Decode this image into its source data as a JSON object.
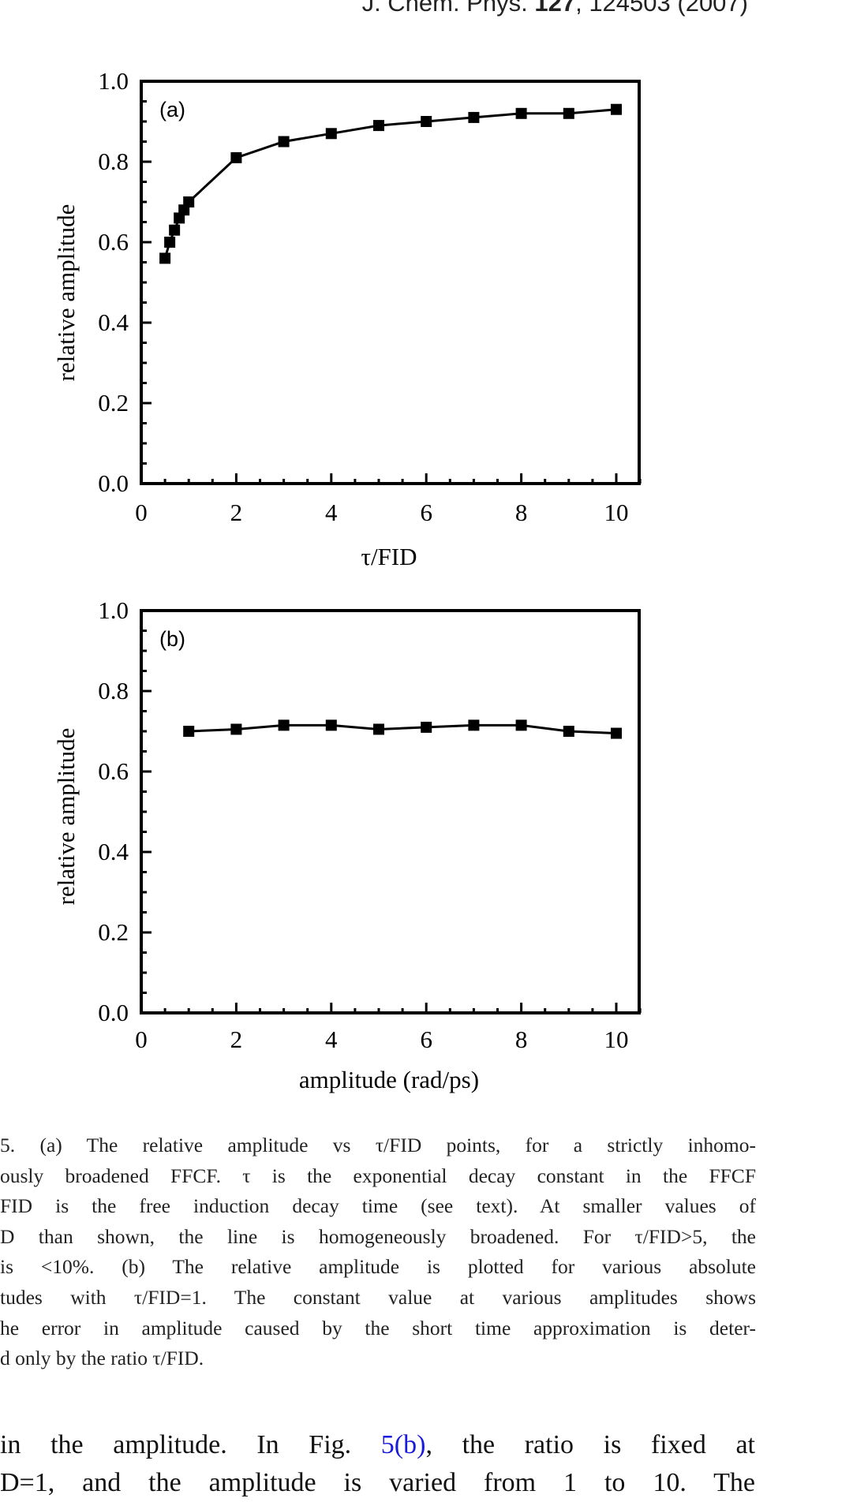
{
  "header": {
    "journal": "J. Chem. Phys. ",
    "volume": "127",
    "rest": ", 124503 (2007)"
  },
  "chart_data": [
    {
      "type": "line",
      "panel_label": "(a)",
      "title": "",
      "xlabel": "τ/FID",
      "ylabel": "relative amplitude",
      "xlim": [
        0,
        10.5
      ],
      "ylim": [
        0.0,
        1.0
      ],
      "xticks": [
        "0",
        "2",
        "4",
        "6",
        "8",
        "10"
      ],
      "yticks": [
        "0.0",
        "0.2",
        "0.4",
        "0.6",
        "0.8",
        "1.0"
      ],
      "grid": false,
      "legend": null,
      "marker": "square",
      "x": [
        0.5,
        0.6,
        0.7,
        0.8,
        0.9,
        1.0,
        2,
        3,
        4,
        5,
        6,
        7,
        8,
        9,
        10
      ],
      "values": [
        0.56,
        0.6,
        0.63,
        0.66,
        0.68,
        0.7,
        0.81,
        0.85,
        0.87,
        0.89,
        0.9,
        0.91,
        0.92,
        0.92,
        0.93
      ]
    },
    {
      "type": "line",
      "panel_label": "(b)",
      "title": "",
      "xlabel": "amplitude (rad/ps)",
      "ylabel": "relative amplitude",
      "xlim": [
        0,
        10.5
      ],
      "ylim": [
        0.0,
        1.0
      ],
      "xticks": [
        "0",
        "2",
        "4",
        "6",
        "8",
        "10"
      ],
      "yticks": [
        "0.0",
        "0.2",
        "0.4",
        "0.6",
        "0.8",
        "1.0"
      ],
      "grid": false,
      "legend": null,
      "marker": "square",
      "x": [
        1,
        2,
        3,
        4,
        5,
        6,
        7,
        8,
        9,
        10
      ],
      "values": [
        0.7,
        0.705,
        0.715,
        0.715,
        0.705,
        0.71,
        0.715,
        0.715,
        0.7,
        0.695
      ]
    }
  ],
  "caption": {
    "lines": [
      "5. (a) The relative amplitude vs τ/FID points, for a strictly inhomo-",
      "ously broadened FFCF. τ is the exponential decay constant in the FFCF",
      "FID is the free induction decay time (see text). At smaller values of",
      "D than shown, the line is homogeneously broadened. For τ/FID>5, the",
      " is <10%. (b) The relative amplitude is plotted for various absolute",
      "tudes with τ/FID=1. The constant value at various amplitudes shows",
      "he error in amplitude caused by the short time approximation is deter-",
      "d only by the ratio τ/FID."
    ]
  },
  "body": {
    "line1_pre": " in the amplitude. In Fig. ",
    "line1_link": "5(b)",
    "line1_post": ", the ratio is fixed at",
    "line2": "D=1, and the amplitude is varied from 1 to 10. The"
  },
  "colors": {
    "link": "#1a1adc",
    "ink": "#111111"
  }
}
